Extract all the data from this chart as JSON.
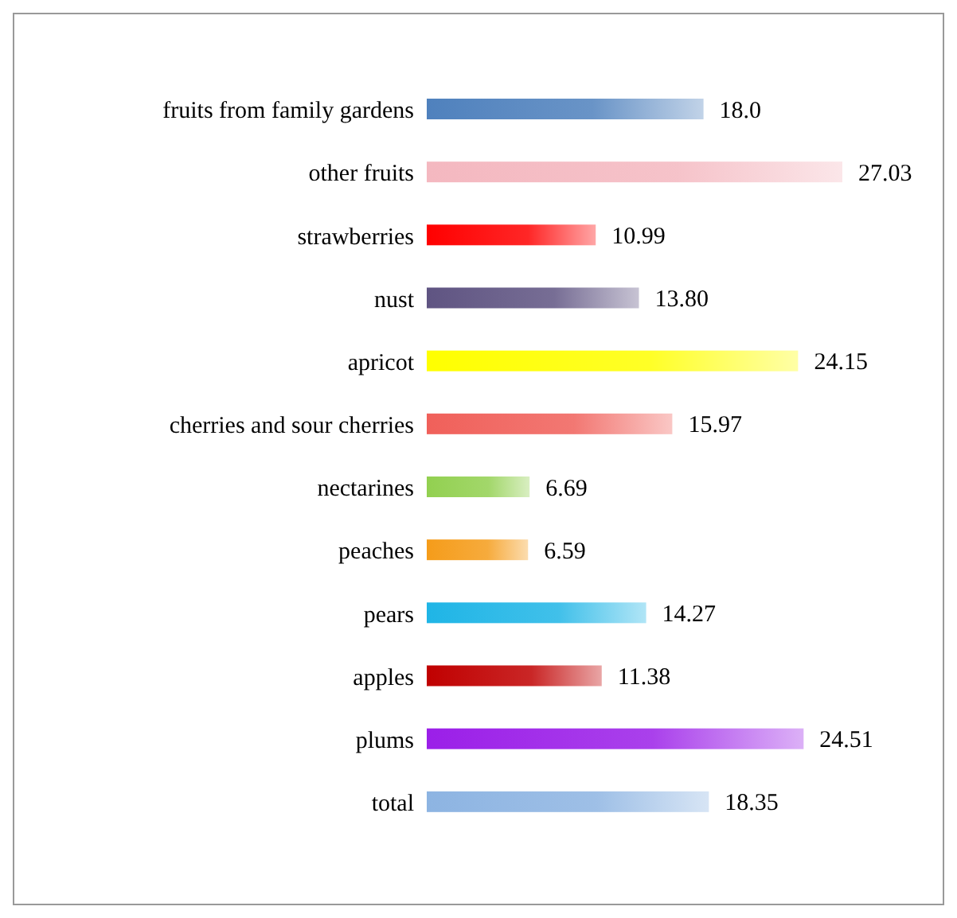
{
  "chart_data": {
    "type": "bar",
    "orientation": "horizontal",
    "categories": [
      "fruits from family gardens",
      "other fruits",
      "strawberries",
      "nust",
      "apricot",
      "cherries and sour cherries",
      "nectarines",
      "peaches",
      "pears",
      "apples",
      "plums",
      "total"
    ],
    "values": [
      18.0,
      27.03,
      10.99,
      13.8,
      24.15,
      15.97,
      6.69,
      6.59,
      14.27,
      11.38,
      24.51,
      18.35
    ],
    "value_labels": [
      "18.0",
      "27.03",
      "10.99",
      "13.80",
      "24.15",
      "15.97",
      "6.69",
      "6.59",
      "14.27",
      "11.38",
      "24.51",
      "18.35"
    ],
    "colors": [
      "#4f81bd",
      "#f4b8c0",
      "#ff0000",
      "#5f5482",
      "#ffff00",
      "#f0605a",
      "#92d050",
      "#f59c1a",
      "#1fb5e6",
      "#c00000",
      "#9b1fe8",
      "#8db4e2"
    ],
    "tick_labels": "y"
  }
}
